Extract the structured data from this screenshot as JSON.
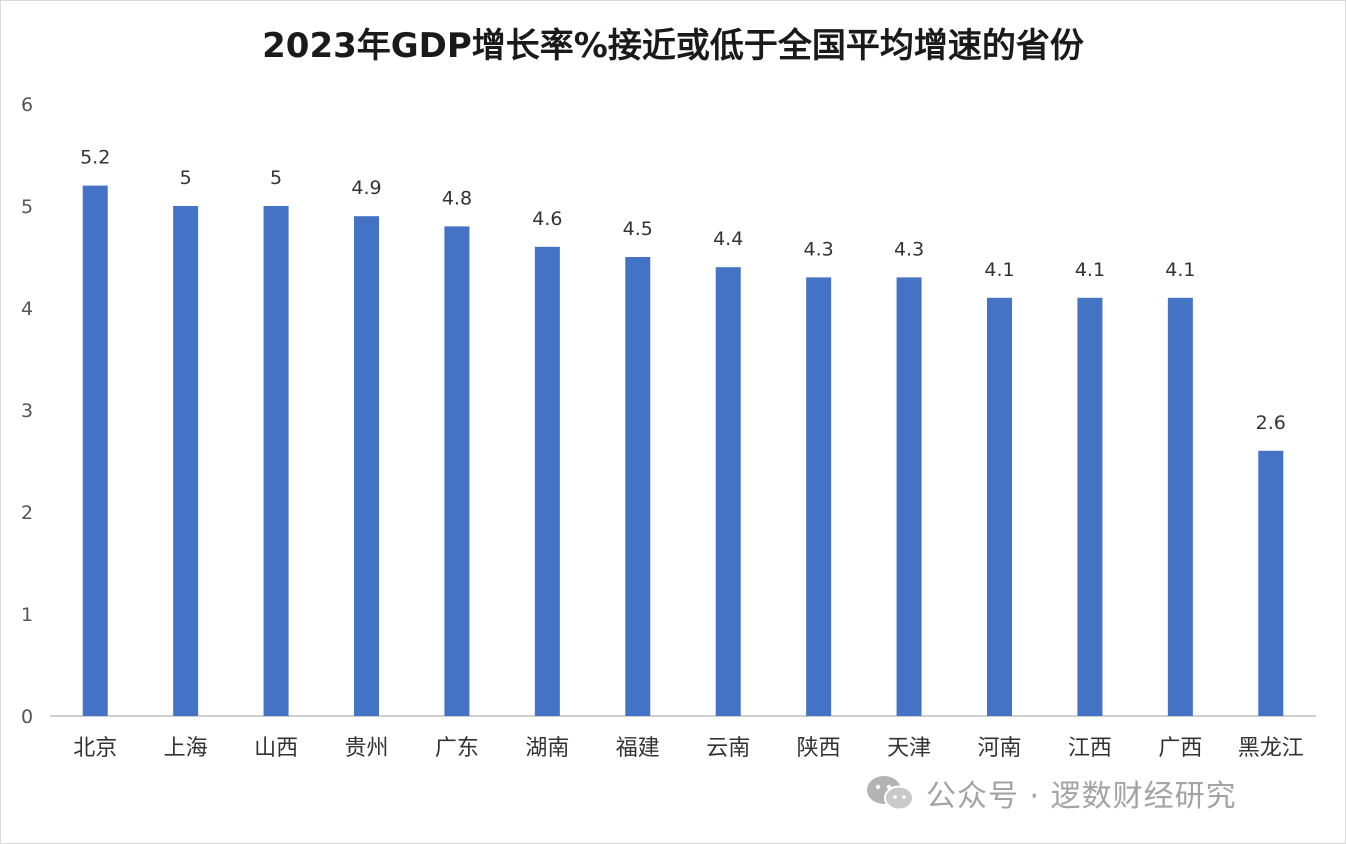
{
  "chart_data": {
    "type": "bar",
    "title": "2023年GDP增长率%接近或低于全国平均增速的省份",
    "categories": [
      "北京",
      "上海",
      "山西",
      "贵州",
      "广东",
      "湖南",
      "福建",
      "云南",
      "陕西",
      "天津",
      "河南",
      "江西",
      "广西",
      "黑龙江"
    ],
    "values": [
      5.2,
      5,
      5,
      4.9,
      4.8,
      4.6,
      4.5,
      4.4,
      4.3,
      4.3,
      4.1,
      4.1,
      4.1,
      2.6
    ],
    "data_labels": [
      "5.2",
      "5",
      "5",
      "4.9",
      "4.8",
      "4.6",
      "4.5",
      "4.4",
      "4.3",
      "4.3",
      "4.1",
      "4.1",
      "4.1",
      "2.6"
    ],
    "yticks": [
      "0",
      "1",
      "2",
      "3",
      "4",
      "5",
      "6"
    ],
    "ylim": [
      0,
      6
    ],
    "xlabel": "",
    "ylabel": "",
    "grid": false,
    "bar_color": "#4472c4"
  },
  "watermark": {
    "icon": "wechat-icon",
    "text": "公众号 · 逻数财经研究"
  }
}
